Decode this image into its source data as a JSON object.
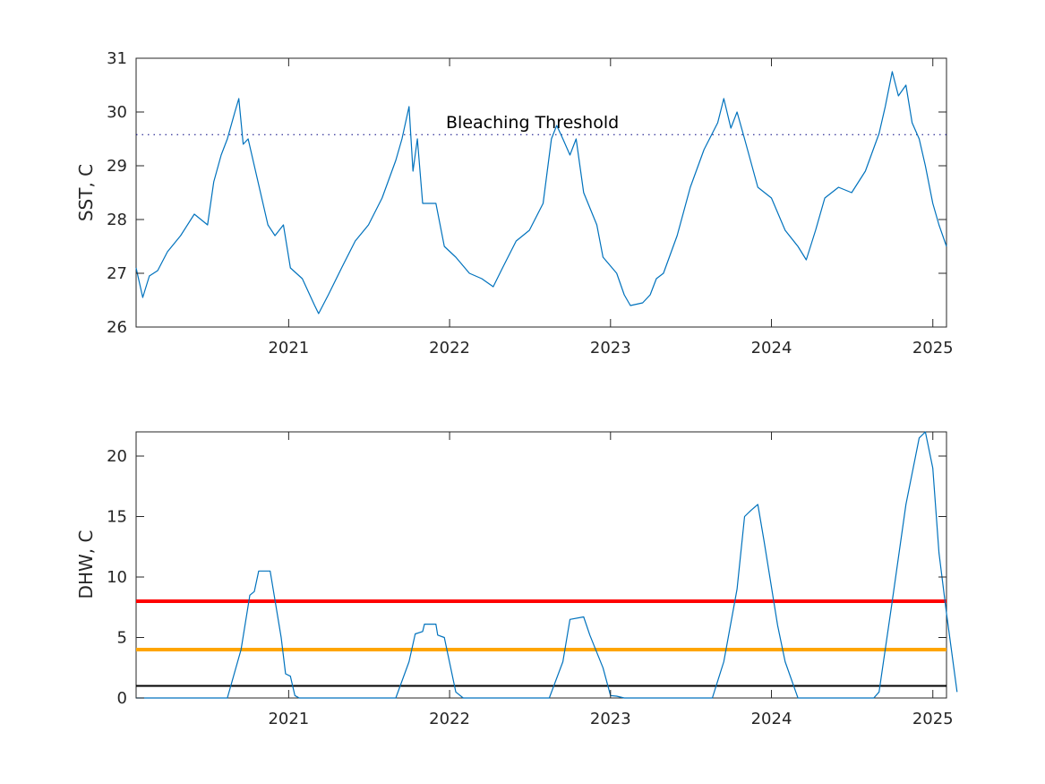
{
  "chart_data": [
    {
      "type": "line",
      "ylabel": "SST, C",
      "xlabel": "",
      "xlim": [
        "2020-01-21",
        "2025-02-01"
      ],
      "ylim": [
        26,
        31
      ],
      "x_ticks": [
        "2021",
        "2022",
        "2023",
        "2024",
        "2025"
      ],
      "y_ticks": [
        "26",
        "27",
        "28",
        "29",
        "30",
        "31"
      ],
      "grid": false,
      "annotation": {
        "text": "Bleaching Threshold",
        "y": 29.75
      },
      "reference_lines": [
        {
          "y": 29.58,
          "style": "dotted",
          "color": "#000080"
        }
      ],
      "series": [
        {
          "color": "#0072BD",
          "points": [
            [
              "2020-01-21",
              27.1
            ],
            [
              "2020-02-05",
              26.55
            ],
            [
              "2020-02-20",
              26.95
            ],
            [
              "2020-03-10",
              27.05
            ],
            [
              "2020-04-01",
              27.4
            ],
            [
              "2020-05-01",
              27.7
            ],
            [
              "2020-06-01",
              28.1
            ],
            [
              "2020-07-01",
              27.9
            ],
            [
              "2020-07-15",
              28.7
            ],
            [
              "2020-08-01",
              29.2
            ],
            [
              "2020-08-15",
              29.5
            ],
            [
              "2020-09-01",
              30.0
            ],
            [
              "2020-09-10",
              30.25
            ],
            [
              "2020-09-20",
              29.4
            ],
            [
              "2020-10-01",
              29.5
            ],
            [
              "2020-10-15",
              29.0
            ],
            [
              "2020-11-01",
              28.4
            ],
            [
              "2020-11-15",
              27.9
            ],
            [
              "2020-12-01",
              27.7
            ],
            [
              "2020-12-20",
              27.9
            ],
            [
              "2021-01-05",
              27.1
            ],
            [
              "2021-02-01",
              26.9
            ],
            [
              "2021-03-01",
              26.4
            ],
            [
              "2021-03-10",
              26.25
            ],
            [
              "2021-04-01",
              26.6
            ],
            [
              "2021-05-01",
              27.1
            ],
            [
              "2021-06-01",
              27.6
            ],
            [
              "2021-07-01",
              27.9
            ],
            [
              "2021-08-01",
              28.4
            ],
            [
              "2021-09-01",
              29.1
            ],
            [
              "2021-09-15",
              29.5
            ],
            [
              "2021-10-01",
              30.1
            ],
            [
              "2021-10-10",
              28.9
            ],
            [
              "2021-10-20",
              29.5
            ],
            [
              "2021-11-01",
              28.3
            ],
            [
              "2021-12-01",
              28.3
            ],
            [
              "2021-12-20",
              27.5
            ],
            [
              "2022-01-15",
              27.3
            ],
            [
              "2022-02-15",
              27.0
            ],
            [
              "2022-03-15",
              26.9
            ],
            [
              "2022-04-10",
              26.75
            ],
            [
              "2022-05-01",
              27.1
            ],
            [
              "2022-06-01",
              27.6
            ],
            [
              "2022-07-01",
              27.8
            ],
            [
              "2022-08-01",
              28.3
            ],
            [
              "2022-08-20",
              29.5
            ],
            [
              "2022-09-01",
              29.75
            ],
            [
              "2022-09-15",
              29.5
            ],
            [
              "2022-10-01",
              29.2
            ],
            [
              "2022-10-15",
              29.5
            ],
            [
              "2022-11-01",
              28.5
            ],
            [
              "2022-12-01",
              27.9
            ],
            [
              "2022-12-15",
              27.3
            ],
            [
              "2023-01-15",
              27.0
            ],
            [
              "2023-02-01",
              26.6
            ],
            [
              "2023-02-15",
              26.4
            ],
            [
              "2023-03-15",
              26.45
            ],
            [
              "2023-04-01",
              26.6
            ],
            [
              "2023-04-15",
              26.9
            ],
            [
              "2023-05-01",
              27.0
            ],
            [
              "2023-06-01",
              27.7
            ],
            [
              "2023-07-01",
              28.6
            ],
            [
              "2023-08-01",
              29.3
            ],
            [
              "2023-09-01",
              29.8
            ],
            [
              "2023-09-15",
              30.25
            ],
            [
              "2023-10-01",
              29.7
            ],
            [
              "2023-10-15",
              30.0
            ],
            [
              "2023-11-01",
              29.5
            ],
            [
              "2023-12-01",
              28.6
            ],
            [
              "2024-01-01",
              28.4
            ],
            [
              "2024-02-01",
              27.8
            ],
            [
              "2024-03-01",
              27.5
            ],
            [
              "2024-03-20",
              27.25
            ],
            [
              "2024-04-10",
              27.8
            ],
            [
              "2024-05-01",
              28.4
            ],
            [
              "2024-06-01",
              28.6
            ],
            [
              "2024-07-01",
              28.5
            ],
            [
              "2024-08-01",
              28.9
            ],
            [
              "2024-09-01",
              29.6
            ],
            [
              "2024-09-15",
              30.1
            ],
            [
              "2024-10-01",
              30.75
            ],
            [
              "2024-10-15",
              30.3
            ],
            [
              "2024-11-01",
              30.5
            ],
            [
              "2024-11-15",
              29.8
            ],
            [
              "2024-12-01",
              29.5
            ],
            [
              "2024-12-15",
              29.0
            ],
            [
              "2025-01-01",
              28.3
            ],
            [
              "2025-01-15",
              27.9
            ],
            [
              "2025-02-01",
              27.5
            ]
          ]
        }
      ]
    },
    {
      "type": "line",
      "ylabel": "DHW, C",
      "xlabel": "",
      "xlim": [
        "2020-01-21",
        "2025-02-01"
      ],
      "ylim": [
        0,
        22
      ],
      "x_ticks": [
        "2021",
        "2022",
        "2023",
        "2024",
        "2025"
      ],
      "y_ticks": [
        "0",
        "5",
        "10",
        "15",
        "20"
      ],
      "grid": false,
      "reference_lines": [
        {
          "y": 8,
          "color": "#ff0000",
          "style": "solid"
        },
        {
          "y": 4,
          "color": "#ffa500",
          "style": "solid"
        },
        {
          "y": 1,
          "color": "#000000",
          "style": "solid"
        }
      ],
      "series": [
        {
          "color": "#0072BD",
          "points": [
            [
              "2020-01-21",
              0
            ],
            [
              "2020-08-15",
              0
            ],
            [
              "2020-09-15",
              4.0
            ],
            [
              "2020-10-05",
              8.5
            ],
            [
              "2020-10-15",
              8.8
            ],
            [
              "2020-10-25",
              10.5
            ],
            [
              "2020-11-20",
              10.5
            ],
            [
              "2020-12-15",
              5.0
            ],
            [
              "2020-12-25",
              2.0
            ],
            [
              "2021-01-05",
              1.8
            ],
            [
              "2021-01-15",
              0.2
            ],
            [
              "2021-01-25",
              0
            ],
            [
              "2021-09-01",
              0
            ],
            [
              "2021-10-01",
              3.0
            ],
            [
              "2021-10-15",
              5.3
            ],
            [
              "2021-11-01",
              5.5
            ],
            [
              "2021-11-05",
              6.1
            ],
            [
              "2021-12-01",
              6.1
            ],
            [
              "2021-12-05",
              5.2
            ],
            [
              "2021-12-20",
              5.0
            ],
            [
              "2022-01-15",
              0.5
            ],
            [
              "2022-02-01",
              0
            ],
            [
              "2022-08-15",
              0
            ],
            [
              "2022-09-15",
              3.0
            ],
            [
              "2022-10-01",
              6.5
            ],
            [
              "2022-11-01",
              6.7
            ],
            [
              "2022-11-15",
              5.2
            ],
            [
              "2022-12-15",
              2.5
            ],
            [
              "2023-01-01",
              0.2
            ],
            [
              "2023-01-15",
              0.15
            ],
            [
              "2023-02-01",
              0
            ],
            [
              "2023-08-20",
              0
            ],
            [
              "2023-09-15",
              3.0
            ],
            [
              "2023-10-15",
              9.0
            ],
            [
              "2023-11-01",
              15.0
            ],
            [
              "2023-11-15",
              15.5
            ],
            [
              "2023-12-01",
              16.0
            ],
            [
              "2023-12-15",
              13.0
            ],
            [
              "2024-01-15",
              6.0
            ],
            [
              "2024-02-01",
              3.0
            ],
            [
              "2024-03-01",
              0
            ],
            [
              "2024-08-20",
              0
            ],
            [
              "2024-09-01",
              0.5
            ],
            [
              "2024-10-01",
              8.0
            ],
            [
              "2024-11-01",
              16.0
            ],
            [
              "2024-12-01",
              21.5
            ],
            [
              "2024-12-15",
              22.0
            ],
            [
              "2025-01-01",
              19.0
            ],
            [
              "2025-01-15",
              12.0
            ],
            [
              "2025-02-01",
              7.0
            ],
            [
              "2025-02-25",
              0.5
            ]
          ]
        }
      ]
    }
  ]
}
